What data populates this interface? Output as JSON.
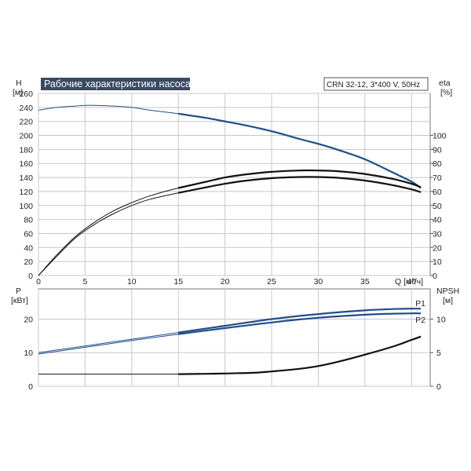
{
  "colors": {
    "blue": "#1f4e8c",
    "black": "#111111",
    "grid": "#c8c8c8",
    "title_bg": "#3a4a63",
    "title_text": "#ffffff"
  },
  "chart_data": [
    {
      "type": "line",
      "title": "Рабочие характеристики насоса",
      "subtitle": "CRN 32-12, 3*400 V, 50Hz",
      "xlabel": "Q [м³/ч]",
      "ylabel_left": {
        "name": "H",
        "unit": "[м]"
      },
      "ylabel_right": {
        "name": "eta",
        "unit": "[%]"
      },
      "xlim": [
        0,
        42
      ],
      "x_ticks": [
        "0",
        "5",
        "10",
        "15",
        "20",
        "25",
        "30",
        "35",
        "40"
      ],
      "ylim_left": [
        0,
        260
      ],
      "y_ticks_left": [
        "0",
        "20",
        "40",
        "60",
        "80",
        "100",
        "120",
        "140",
        "160",
        "180",
        "200",
        "220",
        "240",
        "260"
      ],
      "ylim_right": [
        0,
        130
      ],
      "y_ticks_right": [
        "0",
        "10",
        "20",
        "30",
        "40",
        "50",
        "60",
        "70",
        "80",
        "90",
        "100"
      ],
      "grid": true,
      "series": [
        {
          "axis": "left",
          "color": "blue",
          "x": [
            0,
            2,
            4,
            5,
            6,
            8,
            10,
            12,
            15,
            18,
            20,
            22,
            25,
            28,
            30,
            32,
            35,
            38,
            40,
            41
          ],
          "y": [
            236,
            240,
            242,
            243,
            243,
            242,
            240,
            236,
            231,
            225,
            220,
            215,
            206,
            195,
            188,
            180,
            166,
            147,
            134,
            125
          ]
        },
        {
          "axis": "right",
          "color": "black",
          "x": [
            0,
            2,
            4,
            6,
            8,
            10,
            12,
            15,
            18,
            20,
            22,
            25,
            28,
            30,
            32,
            35,
            38,
            40,
            41
          ],
          "y": [
            0,
            15,
            28,
            38,
            46,
            52,
            57,
            62.5,
            67,
            70,
            72,
            74,
            75,
            75,
            74.5,
            72.5,
            69,
            65.5,
            63
          ]
        },
        {
          "axis": "right",
          "color": "black",
          "x": [
            0,
            2,
            4,
            6,
            8,
            10,
            12,
            15,
            18,
            20,
            22,
            25,
            28,
            30,
            32,
            35,
            38,
            40,
            41
          ],
          "y": [
            0,
            14,
            27,
            36.5,
            44,
            50,
            54.5,
            59,
            63,
            65.5,
            67.5,
            69.5,
            70.3,
            70.3,
            69.8,
            67.8,
            64.5,
            61.5,
            59.5
          ]
        }
      ]
    },
    {
      "type": "line",
      "xlim": [
        0,
        42
      ],
      "ylabel_left": {
        "name": "P",
        "unit": "[кВт]"
      },
      "ylabel_right": {
        "name": "NPSH",
        "unit": "[м]"
      },
      "ylim_left": [
        0,
        29
      ],
      "y_ticks_left": [
        "0",
        "10",
        "20"
      ],
      "ylim_right": [
        0,
        14.5
      ],
      "y_ticks_right": [
        "0",
        "5",
        "10"
      ],
      "grid": true,
      "series": [
        {
          "name": "P1",
          "axis": "left",
          "color": "blue",
          "x": [
            0,
            5,
            10,
            15,
            20,
            25,
            30,
            35,
            38,
            40,
            41
          ],
          "y": [
            10,
            12,
            14,
            16,
            18,
            20,
            21.5,
            22.6,
            23,
            23.1,
            23.1
          ]
        },
        {
          "name": "P2",
          "axis": "left",
          "color": "blue",
          "x": [
            0,
            5,
            10,
            15,
            20,
            25,
            30,
            35,
            38,
            40,
            41
          ],
          "y": [
            9.6,
            11.6,
            13.6,
            15.5,
            17.3,
            19,
            20.4,
            21.3,
            21.6,
            21.7,
            21.7
          ]
        },
        {
          "axis": "right",
          "color": "black",
          "x": [
            0,
            5,
            10,
            15,
            18,
            20,
            23,
            25,
            28,
            30,
            32,
            35,
            38,
            40,
            41
          ],
          "y": [
            1.8,
            1.8,
            1.8,
            1.8,
            1.85,
            1.9,
            2.0,
            2.2,
            2.6,
            3.0,
            3.6,
            4.7,
            5.9,
            6.9,
            7.4
          ]
        }
      ]
    }
  ]
}
